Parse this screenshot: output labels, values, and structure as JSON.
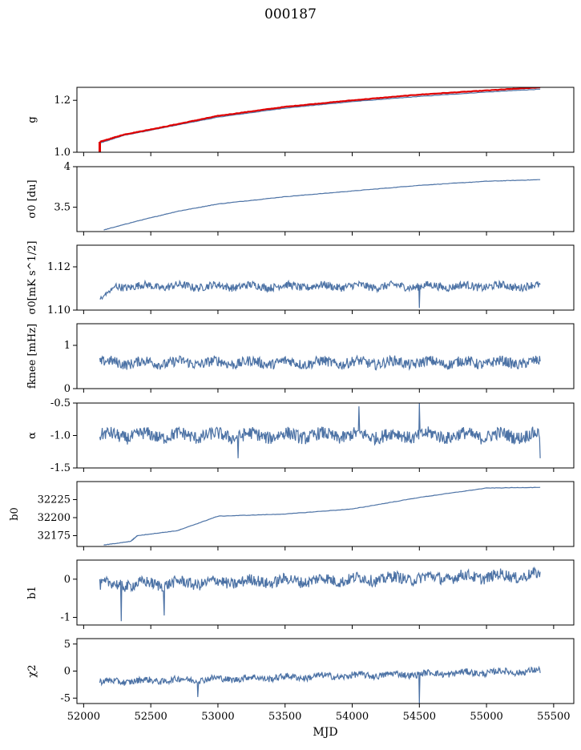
{
  "title": "000187",
  "chart_data": {
    "type": "line",
    "colors": {
      "series": "#4c72a5",
      "reference": "#e00000"
    },
    "shared_x": {
      "label": "MJD",
      "lim": [
        51950,
        55650
      ],
      "ticks": [
        52000,
        52500,
        53000,
        53500,
        54000,
        54500,
        55000,
        55500
      ]
    },
    "panels": [
      {
        "id": "g",
        "ylabel": "g",
        "ylim": [
          1.0,
          1.25
        ],
        "yticks": [
          1.0,
          1.2
        ],
        "series": [
          {
            "values": [
              [
                52120,
                1.035
              ],
              [
                52300,
                1.065
              ],
              [
                52600,
                1.095
              ],
              [
                53000,
                1.135
              ],
              [
                53500,
                1.17
              ],
              [
                54000,
                1.195
              ],
              [
                54500,
                1.215
              ],
              [
                55000,
                1.232
              ],
              [
                55400,
                1.243
              ]
            ]
          },
          {
            "role": "reference",
            "values": [
              [
                52120,
                1.04
              ],
              [
                52300,
                1.068
              ],
              [
                52600,
                1.098
              ],
              [
                53000,
                1.14
              ],
              [
                53500,
                1.175
              ],
              [
                54000,
                1.2
              ],
              [
                54500,
                1.222
              ],
              [
                55000,
                1.238
              ],
              [
                55400,
                1.25
              ]
            ]
          }
        ],
        "annotations": {
          "red_spike_x": 52120,
          "red_spike_range": [
            1.0,
            1.04
          ]
        }
      },
      {
        "id": "sigma0du",
        "ylabel": "σ0 [du]",
        "ylim": [
          3.2,
          4.0
        ],
        "yticks": [
          3.5,
          4.0
        ],
        "series": [
          {
            "values": [
              [
                52150,
                3.22
              ],
              [
                52400,
                3.33
              ],
              [
                52700,
                3.45
              ],
              [
                53000,
                3.54
              ],
              [
                53500,
                3.63
              ],
              [
                54000,
                3.7
              ],
              [
                54500,
                3.77
              ],
              [
                55000,
                3.82
              ],
              [
                55400,
                3.84
              ]
            ]
          }
        ]
      },
      {
        "id": "sigma0mK",
        "ylabel": "σ0[mK s^1/2]",
        "ylim": [
          1.1,
          1.13
        ],
        "yticks": [
          1.1,
          1.12
        ],
        "series": [
          {
            "base": 1.111,
            "noise": 0.0018,
            "start": [
              52120,
              1.105
            ]
          }
        ],
        "annotations": {
          "dip_x": 54500,
          "dip_y": 1.101
        }
      },
      {
        "id": "fknee",
        "ylabel": "fknee [mHz]",
        "ylim": [
          0,
          1.5
        ],
        "yticks": [
          0,
          1
        ],
        "series": [
          {
            "base": 0.6,
            "noise": 0.12
          }
        ]
      },
      {
        "id": "alpha",
        "ylabel": "α",
        "ylim": [
          -1.5,
          -0.5
        ],
        "yticks": [
          -1.5,
          -1.0,
          -0.5
        ],
        "series": [
          {
            "base": -1.0,
            "noise": 0.1
          }
        ],
        "annotations": {
          "spikes": [
            [
              54050,
              -0.55
            ],
            [
              54500,
              -0.5
            ],
            [
              53150,
              -1.35
            ],
            [
              55400,
              -1.35
            ]
          ]
        }
      },
      {
        "id": "b0",
        "ylabel": "b0",
        "ylim": [
          32160,
          32250
        ],
        "yticks": [
          32175,
          32200,
          32225
        ],
        "series": [
          {
            "values": [
              [
                52150,
                32162
              ],
              [
                52350,
                32167
              ],
              [
                52400,
                32175
              ],
              [
                52700,
                32182
              ],
              [
                53000,
                32202
              ],
              [
                53500,
                32205
              ],
              [
                54000,
                32212
              ],
              [
                54500,
                32228
              ],
              [
                55000,
                32241
              ],
              [
                55400,
                32242
              ]
            ]
          }
        ]
      },
      {
        "id": "b1",
        "ylabel": "b1",
        "ylim": [
          -1.2,
          0.5
        ],
        "yticks": [
          -1,
          0
        ],
        "series": [
          {
            "base": -0.15,
            "trend": 0.25,
            "noise": 0.15
          }
        ],
        "annotations": {
          "spikes": [
            [
              52280,
              -1.1
            ],
            [
              52600,
              -0.95
            ]
          ]
        }
      },
      {
        "id": "chi2",
        "ylabel": "χ2",
        "ylim": [
          -6,
          6
        ],
        "yticks": [
          -5,
          0,
          5
        ],
        "series": [
          {
            "base": -2.0,
            "trend": 2.0,
            "noise": 0.6
          }
        ],
        "annotations": {
          "spikes": [
            [
              52850,
              -4.8
            ],
            [
              54500,
              -6
            ]
          ]
        }
      }
    ]
  }
}
